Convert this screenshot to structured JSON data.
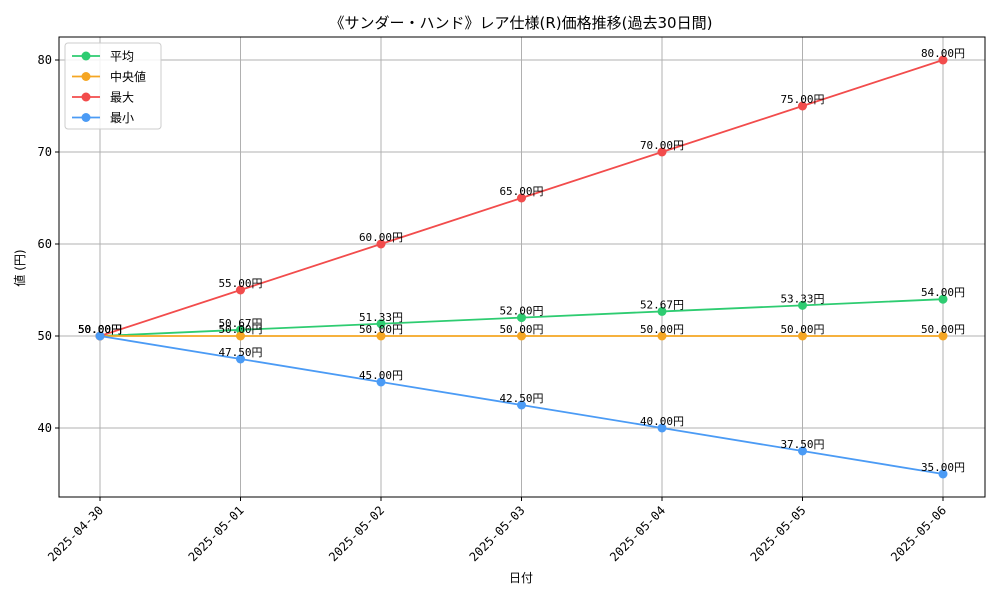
{
  "chart_data": {
    "type": "line",
    "title": "《サンダー・ハンド》レア仕様(R)価格推移(過去30日間)",
    "xlabel": "日付",
    "ylabel": "値 (円)",
    "ylim": [
      32.5,
      82.5
    ],
    "yticks": [
      40,
      50,
      60,
      70,
      80
    ],
    "grid": true,
    "legend_position": "top-left",
    "value_suffix": "円",
    "categories": [
      "2025-04-30",
      "2025-05-01",
      "2025-05-02",
      "2025-05-03",
      "2025-05-04",
      "2025-05-05",
      "2025-05-06"
    ],
    "series": [
      {
        "name": "平均",
        "color": "#2ecc71",
        "values": [
          50.0,
          50.67,
          51.33,
          52.0,
          52.67,
          53.33,
          54.0
        ]
      },
      {
        "name": "中央値",
        "color": "#f5a623",
        "values": [
          50.0,
          50.0,
          50.0,
          50.0,
          50.0,
          50.0,
          50.0
        ]
      },
      {
        "name": "最大",
        "color": "#f24c4c",
        "values": [
          50.0,
          55.0,
          60.0,
          65.0,
          70.0,
          75.0,
          80.0
        ]
      },
      {
        "name": "最小",
        "color": "#4b9bf5",
        "values": [
          50.0,
          47.5,
          45.0,
          42.5,
          40.0,
          37.5,
          35.0
        ]
      }
    ]
  }
}
